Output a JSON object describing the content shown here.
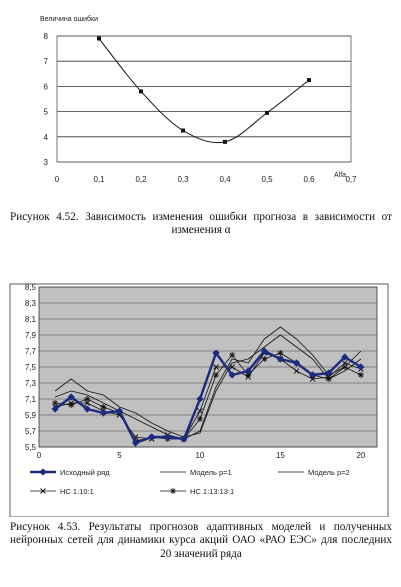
{
  "chart_data": [
    {
      "type": "line",
      "xlabel": "Alfa",
      "ylabel": "Величина ошибки",
      "xlim": [
        0,
        0.7
      ],
      "ylim": [
        3,
        8
      ],
      "xticks": [
        "0",
        "0,1",
        "0,2",
        "0,3",
        "0,4",
        "0,5",
        "0,6",
        "0,7"
      ],
      "yticks": [
        "3",
        "4",
        "5",
        "6",
        "7",
        "8"
      ],
      "grid": "horizontal",
      "series": [
        {
          "x": [
            0.1,
            0.2,
            0.3,
            0.4,
            0.5,
            0.6
          ],
          "values": [
            7.9,
            5.8,
            4.25,
            3.8,
            4.95,
            6.25
          ]
        }
      ]
    },
    {
      "type": "line",
      "xlim": [
        0,
        21
      ],
      "ylim": [
        5.5,
        9.5
      ],
      "xticks": [
        "0",
        "5",
        "10",
        "15",
        "20"
      ],
      "yticks": [
        "5,5",
        "5,7",
        "5,9",
        "7,1",
        "7,3",
        "7,5",
        "7,7",
        "7,9",
        "8,1",
        "8,3",
        "8,5"
      ],
      "grid": "horizontal",
      "plot_background": "#c0c0c0",
      "legend_position": "bottom",
      "x": [
        1,
        2,
        3,
        4,
        5,
        6,
        7,
        8,
        9,
        10,
        11,
        12,
        13,
        14,
        15,
        16,
        17,
        18,
        19,
        20
      ],
      "series": [
        {
          "name": "Исходный ряд",
          "color": "#1c2a80",
          "values": [
            6.45,
            6.75,
            6.45,
            6.35,
            6.4,
            5.6,
            5.75,
            5.75,
            5.7,
            6.7,
            7.85,
            7.3,
            7.4,
            7.9,
            7.7,
            7.6,
            7.3,
            7.35,
            7.75,
            7.5
          ]
        },
        {
          "name": "Модель p=1",
          "color": "#111111",
          "values": [
            6.75,
            6.9,
            6.8,
            6.6,
            6.4,
            6.2,
            6.0,
            5.8,
            5.7,
            5.9,
            7.0,
            7.7,
            7.6,
            8.2,
            8.5,
            8.2,
            7.8,
            7.3,
            7.5,
            7.9
          ]
        },
        {
          "name": "Модель p=2",
          "color": "#111111",
          "values": [
            6.9,
            7.2,
            6.9,
            6.8,
            6.5,
            6.35,
            6.1,
            5.9,
            5.75,
            5.85,
            6.9,
            7.6,
            7.7,
            8.0,
            8.3,
            8.0,
            7.7,
            7.2,
            7.4,
            7.7
          ]
        },
        {
          "name": "НС 1:10:1",
          "color": "#111111",
          "values": [
            6.5,
            6.6,
            6.6,
            6.4,
            6.3,
            5.75,
            5.7,
            5.8,
            5.7,
            6.4,
            7.5,
            7.5,
            7.25,
            7.85,
            7.7,
            7.4,
            7.2,
            7.25,
            7.6,
            7.45
          ]
        },
        {
          "name": "НС 1:13:13:1",
          "color": "#111111",
          "values": [
            6.6,
            6.55,
            6.7,
            6.5,
            6.35,
            5.65,
            5.75,
            5.7,
            5.7,
            6.2,
            7.3,
            7.8,
            7.3,
            7.7,
            7.85,
            7.6,
            7.3,
            7.2,
            7.5,
            7.3
          ]
        }
      ]
    }
  ],
  "captions": {
    "fig1": "Рисунок 4.52. Зависимость изменения ошибки прогноза в зависимости от изменения α",
    "fig2": "Рисунок 4.53. Результаты прогнозов адаптивных моделей и полученных нейронных сетей для динамики курса акций ОАО «РАО ЕЭС» для последних 20 значений ряда"
  }
}
